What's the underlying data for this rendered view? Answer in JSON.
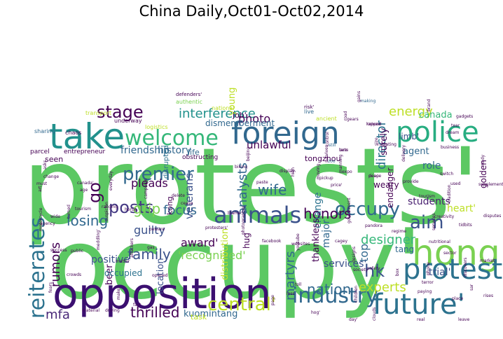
{
  "chart_data": {
    "type": "wordcloud",
    "title": "China Daily,Oct01-Oct02,2014",
    "words": [
      {
        "text": "protests'",
        "weight": 100,
        "color": "#5cc863"
      },
      {
        "text": "occupy'",
        "weight": 92,
        "color": "#5cc863"
      },
      {
        "text": "opposition",
        "weight": 48,
        "color": "#3b0f70"
      },
      {
        "text": "hong",
        "weight": 44,
        "color": "#7ad151"
      },
      {
        "text": "take",
        "weight": 44,
        "color": "#21918c"
      },
      {
        "text": "foreign",
        "weight": 40,
        "color": "#31688e"
      },
      {
        "text": "future'",
        "weight": 40,
        "color": "#2c728e"
      },
      {
        "text": "police",
        "weight": 36,
        "color": "#27ad81"
      },
      {
        "text": "protesters",
        "weight": 30,
        "color": "#2c728e"
      },
      {
        "text": "welcome",
        "weight": 30,
        "color": "#35b779"
      },
      {
        "text": "animals",
        "weight": 28,
        "color": "#3b528b"
      },
      {
        "text": "industry",
        "weight": 26,
        "color": "#31688e"
      },
      {
        "text": "reiterates",
        "weight": 26,
        "color": "#2c728e"
      },
      {
        "text": "central'",
        "weight": 24,
        "color": "#bddf26"
      },
      {
        "text": "occupy",
        "weight": 24,
        "color": "#31688e"
      },
      {
        "text": "hk",
        "weight": 24,
        "color": "#3b528b"
      },
      {
        "text": "stage",
        "weight": 22,
        "color": "#440154"
      },
      {
        "text": "aim",
        "weight": 22,
        "color": "#3b528b"
      },
      {
        "text": "premier",
        "weight": 20,
        "color": "#31688e"
      },
      {
        "text": "go",
        "weight": 20,
        "color": "#440154"
      },
      {
        "text": "posts",
        "weight": 20,
        "color": "#443983"
      },
      {
        "text": "nation",
        "weight": 20,
        "color": "#31688e"
      },
      {
        "text": "thrilled",
        "weight": 18,
        "color": "#440154"
      },
      {
        "text": "wife",
        "weight": 18,
        "color": "#31688e"
      },
      {
        "text": "mfa",
        "weight": 18,
        "color": "#482878"
      },
      {
        "text": "grip",
        "weight": 18,
        "color": "#7ad151"
      },
      {
        "text": "family",
        "weight": 18,
        "color": "#3b528b"
      },
      {
        "text": "honors",
        "weight": 18,
        "color": "#440154"
      },
      {
        "text": "losing",
        "weight": 18,
        "color": "#31688e"
      },
      {
        "text": "interference",
        "weight": 16,
        "color": "#21918c"
      },
      {
        "text": "experts",
        "weight": 16,
        "color": "#bddf26"
      },
      {
        "text": "analysts",
        "weight": 16,
        "color": "#31688e"
      },
      {
        "text": "designer",
        "weight": 16,
        "color": "#35b779"
      },
      {
        "text": "martyrs",
        "weight": 16,
        "color": "#31688e"
      },
      {
        "text": "director",
        "weight": 16,
        "color": "#2c728e"
      },
      {
        "text": "rumors",
        "weight": 16,
        "color": "#440154"
      },
      {
        "text": "focus",
        "weight": 14,
        "color": "#31688e"
      },
      {
        "text": "friendship",
        "weight": 14,
        "color": "#31688e"
      },
      {
        "text": "history",
        "weight": 14,
        "color": "#31688e"
      },
      {
        "text": "photo",
        "weight": 14,
        "color": "#440154"
      },
      {
        "text": "top",
        "weight": 14,
        "color": "#31688e"
      },
      {
        "text": "energy",
        "weight": 14,
        "color": "#bddf26"
      },
      {
        "text": "guilty",
        "weight": 14,
        "color": "#3b528b"
      },
      {
        "text": "pleads",
        "weight": 13,
        "color": "#440154"
      },
      {
        "text": "award'",
        "weight": 13,
        "color": "#440154"
      },
      {
        "text": "'recognized'",
        "weight": 13,
        "color": "#7ad151"
      },
      {
        "text": "unlawful",
        "weight": 12,
        "color": "#440154"
      },
      {
        "text": "positive",
        "weight": 12,
        "color": "#3b528b"
      },
      {
        "text": "veterans",
        "weight": 12,
        "color": "#3b528b"
      },
      {
        "text": "students",
        "weight": 11,
        "color": "#481f70"
      },
      {
        "text": "heart'",
        "weight": 11,
        "color": "#bddf26"
      },
      {
        "text": "agent",
        "weight": 11,
        "color": "#31688e"
      },
      {
        "text": "canada",
        "weight": 11,
        "color": "#35b779"
      },
      {
        "text": "role",
        "weight": 11,
        "color": "#31688e"
      },
      {
        "text": "young",
        "weight": 11,
        "color": "#bddf26"
      },
      {
        "text": "services'",
        "weight": 11,
        "color": "#3b528b"
      },
      {
        "text": "trial'",
        "weight": 11,
        "color": "#3b528b"
      },
      {
        "text": "major",
        "weight": 11,
        "color": "#31688e"
      },
      {
        "text": "change",
        "weight": 10,
        "color": "#2c728e"
      },
      {
        "text": "distribution",
        "weight": 10,
        "color": "#bddf26"
      },
      {
        "text": "thankless",
        "weight": 10,
        "color": "#440154"
      },
      {
        "text": "location",
        "weight": 10,
        "color": "#3b528b"
      },
      {
        "text": "beer",
        "weight": 10,
        "color": "#440154"
      },
      {
        "text": "kuomintang",
        "weight": 10,
        "color": "#31688e"
      },
      {
        "text": "surely",
        "weight": 10,
        "color": "#440154"
      },
      {
        "text": "hug",
        "weight": 10,
        "color": "#440154"
      },
      {
        "text": "endanger",
        "weight": 10,
        "color": "#440154"
      },
      {
        "text": "dismemberment",
        "weight": 10,
        "color": "#31688e"
      },
      {
        "text": "tang",
        "weight": 10,
        "color": "#31688e"
      },
      {
        "text": "limb'",
        "weight": 10,
        "color": "#3b528b"
      },
      {
        "text": "weary",
        "weight": 9,
        "color": "#440154"
      },
      {
        "text": "occupied",
        "weight": 9,
        "color": "#2c728e"
      },
      {
        "text": "golden",
        "weight": 8,
        "color": "#440154"
      },
      {
        "text": "task",
        "weight": 8,
        "color": "#bddf26"
      },
      {
        "text": "disrupted",
        "weight": 8,
        "color": "#2c728e"
      },
      {
        "text": "kong",
        "weight": 8,
        "color": "#440154"
      },
      {
        "text": "seen",
        "weight": 8,
        "color": "#440154"
      },
      {
        "text": "life",
        "weight": 8,
        "color": "#31688e"
      },
      {
        "text": "job'",
        "weight": 8,
        "color": "#440154"
      },
      {
        "text": "tongzhou",
        "weight": 7,
        "color": "#440154"
      },
      {
        "text": "obstructing",
        "weight": 7,
        "color": "#440154"
      },
      {
        "text": "entrepreneur",
        "weight": 7,
        "color": "#440154"
      },
      {
        "text": "parcel",
        "weight": 7,
        "color": "#440154"
      },
      {
        "text": "sharing",
        "weight": 7,
        "color": "#31688e"
      },
      {
        "text": "chaos",
        "weight": 7,
        "color": "#440154"
      },
      {
        "text": "underway",
        "weight": 7,
        "color": "#440154"
      },
      {
        "text": "logistics",
        "weight": 7,
        "color": "#bddf26"
      },
      {
        "text": "authentic",
        "weight": 7,
        "color": "#7ad151"
      },
      {
        "text": "defenders'",
        "weight": 7,
        "color": "#440154"
      },
      {
        "text": "national",
        "weight": 7,
        "color": "#bddf26"
      },
      {
        "text": "transport",
        "weight": 7,
        "color": "#bddf26"
      },
      {
        "text": "ancient",
        "weight": 7,
        "color": "#bddf26"
      },
      {
        "text": "live",
        "weight": 7,
        "color": "#31688e"
      },
      {
        "text": "risk'",
        "weight": 7,
        "color": "#440154"
      },
      {
        "text": "making",
        "weight": 7,
        "color": "#31688e"
      },
      {
        "text": "rapped",
        "weight": 7,
        "color": "#440154"
      },
      {
        "text": "size",
        "weight": 7,
        "color": "#440154"
      },
      {
        "text": "still",
        "weight": 7,
        "color": "#31688e"
      },
      {
        "text": "bets",
        "weight": 7,
        "color": "#440154"
      },
      {
        "text": "road",
        "weight": 7,
        "color": "#440154"
      },
      {
        "text": "zoo",
        "weight": 7,
        "color": "#31688e"
      },
      {
        "text": "deep",
        "weight": 7,
        "color": "#440154"
      },
      {
        "text": "moving",
        "weight": 7,
        "color": "#440154"
      },
      {
        "text": "expo",
        "weight": 7,
        "color": "#440154"
      },
      {
        "text": "price'",
        "weight": 7,
        "color": "#440154"
      },
      {
        "text": "high",
        "weight": 7,
        "color": "#440154"
      },
      {
        "text": "display",
        "weight": 7,
        "color": "#440154"
      },
      {
        "text": "paste",
        "weight": 7,
        "color": "#440154"
      },
      {
        "text": "beijing",
        "weight": 7,
        "color": "#440154"
      },
      {
        "text": "biking",
        "weight": 7,
        "color": "#440154"
      },
      {
        "text": "tourism",
        "weight": 7,
        "color": "#440154"
      },
      {
        "text": "turned",
        "weight": 7,
        "color": "#440154"
      },
      {
        "text": "change",
        "weight": 7,
        "color": "#440154"
      },
      {
        "text": "must",
        "weight": 7,
        "color": "#440154"
      },
      {
        "text": "art",
        "weight": 7,
        "color": "#440154"
      },
      {
        "text": "wide",
        "weight": 7,
        "color": "#440154"
      },
      {
        "text": "agency",
        "weight": 7,
        "color": "#440154"
      },
      {
        "text": "motorcycle",
        "weight": 7,
        "color": "#440154"
      },
      {
        "text": "success",
        "weight": 7,
        "color": "#440154"
      },
      {
        "text": "public",
        "weight": 7,
        "color": "#440154"
      },
      {
        "text": "meddling'",
        "weight": 7,
        "color": "#440154"
      },
      {
        "text": "matter",
        "weight": 7,
        "color": "#440154"
      },
      {
        "text": "crowds",
        "weight": 7,
        "color": "#440154"
      },
      {
        "text": "fears",
        "weight": 7,
        "color": "#440154"
      },
      {
        "text": "material",
        "weight": 7,
        "color": "#440154"
      },
      {
        "text": "driving",
        "weight": 7,
        "color": "#440154"
      },
      {
        "text": "maker",
        "weight": 7,
        "color": "#440154"
      },
      {
        "text": "fast",
        "weight": 7,
        "color": "#440154"
      },
      {
        "text": "opened",
        "weight": 7,
        "color": "#440154"
      },
      {
        "text": "attackers",
        "weight": 7,
        "color": "#440154"
      },
      {
        "text": "gas",
        "weight": 7,
        "color": "#440154"
      },
      {
        "text": "beware",
        "weight": 7,
        "color": "#440154"
      },
      {
        "text": "suspicion",
        "weight": 7,
        "color": "#440154"
      },
      {
        "text": "ranging",
        "weight": 7,
        "color": "#440154"
      },
      {
        "text": "horse",
        "weight": 7,
        "color": "#440154"
      },
      {
        "text": "campaign",
        "weight": 7,
        "color": "#440154"
      },
      {
        "text": "cease",
        "weight": 7,
        "color": "#440154"
      },
      {
        "text": "delete",
        "weight": 7,
        "color": "#440154"
      },
      {
        "text": "everyday",
        "weight": 7,
        "color": "#440154"
      },
      {
        "text": "age",
        "weight": 7,
        "color": "#440154"
      },
      {
        "text": "canada'",
        "weight": 7,
        "color": "#440154"
      },
      {
        "text": "asks",
        "weight": 7,
        "color": "#440154"
      },
      {
        "text": "protesters'",
        "weight": 7,
        "color": "#440154"
      },
      {
        "text": "blame",
        "weight": 7,
        "color": "#440154"
      },
      {
        "text": "photographer",
        "weight": 7,
        "color": "#440154"
      },
      {
        "text": "facebook",
        "weight": 7,
        "color": "#440154"
      },
      {
        "text": "websites",
        "weight": 7,
        "color": "#440154"
      },
      {
        "text": "youtube",
        "weight": 7,
        "color": "#440154"
      },
      {
        "text": "toll",
        "weight": 7,
        "color": "#440154"
      },
      {
        "text": "loss",
        "weight": 7,
        "color": "#440154"
      },
      {
        "text": "page",
        "weight": 7,
        "color": "#440154"
      },
      {
        "text": "hog'",
        "weight": 7,
        "color": "#440154"
      },
      {
        "text": "day'",
        "weight": 7,
        "color": "#440154"
      },
      {
        "text": "clouds",
        "weight": 7,
        "color": "#440154"
      },
      {
        "text": "real",
        "weight": 7,
        "color": "#440154"
      },
      {
        "text": "leave",
        "weight": 7,
        "color": "#440154"
      },
      {
        "text": "children",
        "weight": 7,
        "color": "#440154"
      },
      {
        "text": "paying",
        "weight": 7,
        "color": "#440154"
      },
      {
        "text": "terror",
        "weight": 7,
        "color": "#440154"
      },
      {
        "text": "box",
        "weight": 7,
        "color": "#440154"
      },
      {
        "text": "safety",
        "weight": 7,
        "color": "#440154"
      },
      {
        "text": "regime",
        "weight": 7,
        "color": "#440154"
      },
      {
        "text": "designs",
        "weight": 7,
        "color": "#440154"
      },
      {
        "text": "society",
        "weight": 7,
        "color": "#440154"
      },
      {
        "text": "cagey",
        "weight": 7,
        "color": "#440154"
      },
      {
        "text": "government",
        "weight": 7,
        "color": "#440154"
      },
      {
        "text": "pandora",
        "weight": 7,
        "color": "#440154"
      },
      {
        "text": "creativity",
        "weight": 7,
        "color": "#440154"
      },
      {
        "text": "services",
        "weight": 7,
        "color": "#440154"
      },
      {
        "text": "provide",
        "weight": 7,
        "color": "#440154"
      },
      {
        "text": "tourism",
        "weight": 7,
        "color": "#440154"
      },
      {
        "text": "tradition",
        "weight": 7,
        "color": "#440154"
      },
      {
        "text": "used",
        "weight": 7,
        "color": "#440154"
      },
      {
        "text": "switch",
        "weight": 7,
        "color": "#440154"
      },
      {
        "text": "delivery",
        "weight": 7,
        "color": "#440154"
      },
      {
        "text": "business",
        "weight": 7,
        "color": "#440154"
      },
      {
        "text": "tear",
        "weight": 7,
        "color": "#440154"
      },
      {
        "text": "brand",
        "weight": 7,
        "color": "#440154"
      },
      {
        "text": "gadgets",
        "weight": 7,
        "color": "#440154"
      },
      {
        "text": "dream",
        "weight": 7,
        "color": "#440154"
      },
      {
        "text": "ready",
        "weight": 7,
        "color": "#440154"
      },
      {
        "text": "supplements",
        "weight": 7,
        "color": "#440154"
      },
      {
        "text": "market",
        "weight": 7,
        "color": "#440154"
      },
      {
        "text": "sar",
        "weight": 7,
        "color": "#440154"
      },
      {
        "text": "rises",
        "weight": 7,
        "color": "#440154"
      },
      {
        "text": "place",
        "weight": 7,
        "color": "#440154"
      },
      {
        "text": "phone",
        "weight": 7,
        "color": "#440154"
      },
      {
        "text": "disputes",
        "weight": 7,
        "color": "#440154"
      },
      {
        "text": "sector",
        "weight": 7,
        "color": "#440154"
      },
      {
        "text": "discovers",
        "weight": 7,
        "color": "#440154"
      },
      {
        "text": "tidbits",
        "weight": 7,
        "color": "#440154"
      },
      {
        "text": "nutritional",
        "weight": 7,
        "color": "#440154"
      },
      {
        "text": "gains",
        "weight": 7,
        "color": "#440154"
      },
      {
        "text": "knives",
        "weight": 7,
        "color": "#440154"
      },
      {
        "text": "radiating",
        "weight": 7,
        "color": "#440154"
      },
      {
        "text": "control",
        "weight": 7,
        "color": "#440154"
      },
      {
        "text": "lane",
        "weight": 7,
        "color": "#440154"
      },
      {
        "text": "gears",
        "weight": 7,
        "color": "#440154"
      },
      {
        "text": "survives",
        "weight": 7,
        "color": "#440154"
      },
      {
        "text": "peace",
        "weight": 7,
        "color": "#440154"
      },
      {
        "text": "pickup",
        "weight": 7,
        "color": "#440154"
      },
      {
        "text": "manning",
        "weight": 7,
        "color": "#440154"
      }
    ]
  }
}
